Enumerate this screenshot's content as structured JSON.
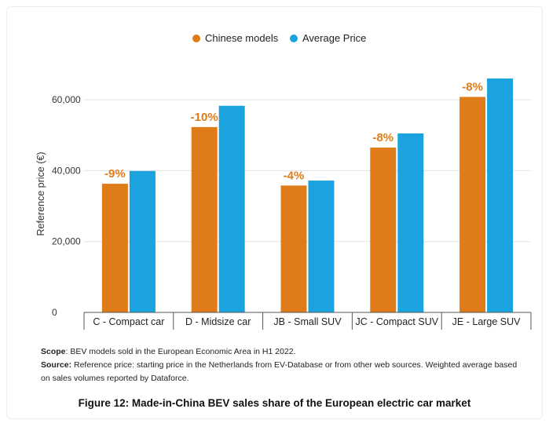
{
  "chart_data": {
    "type": "bar",
    "ylabel": "Reference price (€)",
    "ylim": [
      0,
      66000
    ],
    "yticks": [
      0,
      20000,
      40000,
      60000
    ],
    "ytick_labels": [
      "0",
      "20,000",
      "40,000",
      "60,000"
    ],
    "categories": [
      "C - Compact car",
      "D - Midsize car",
      "JB - Small SUV",
      "JC - Compact SUV",
      "JE - Large SUV"
    ],
    "series": [
      {
        "name": "Chinese models",
        "color": "#e07b1a",
        "values": [
          36300,
          52300,
          35800,
          46500,
          60800
        ]
      },
      {
        "name": "Average Price",
        "color": "#1ba3e0",
        "values": [
          39900,
          58300,
          37200,
          50500,
          66000
        ]
      }
    ],
    "annotations": [
      "-9%",
      "-10%",
      "-4%",
      "-8%",
      "-8%"
    ],
    "annotation_color": "#e07b1a",
    "legend_position": "top-center",
    "grid": true
  },
  "notes": {
    "scope_label": "Scope",
    "scope_text": ": BEV models sold in the European Economic Area in H1 2022.",
    "source_label": "Source:",
    "source_text": " Reference price: starting price in the Netherlands from EV-Database or from other web sources. Weighted average based on sales volumes reported by Dataforce."
  },
  "caption": "Figure 12: Made-in-China BEV sales share of the European electric car market"
}
